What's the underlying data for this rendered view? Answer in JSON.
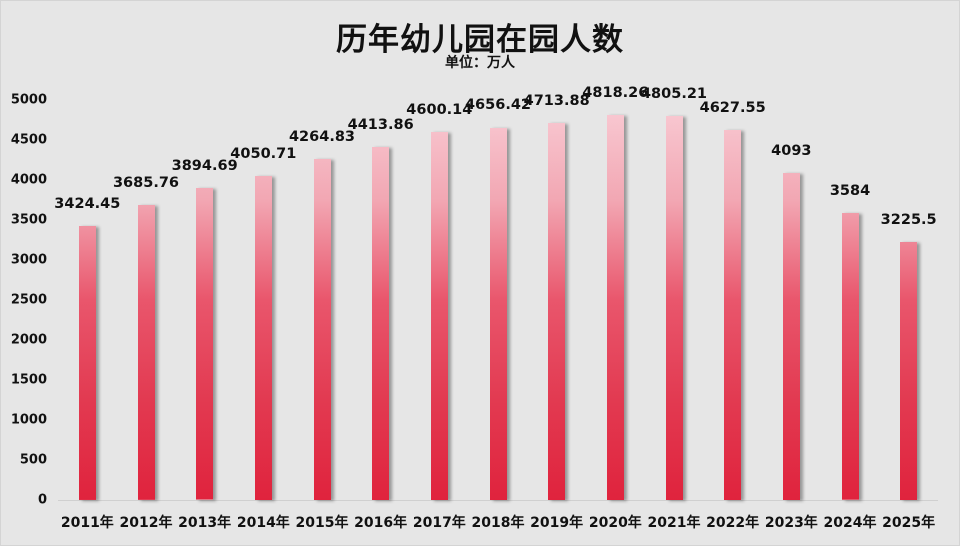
{
  "chart_data": {
    "type": "bar",
    "title": "历年幼儿园在园人数",
    "subtitle": "单位：万人",
    "xlabel": "",
    "ylabel": "",
    "categories": [
      "2011年",
      "2012年",
      "2013年",
      "2014年",
      "2015年",
      "2016年",
      "2017年",
      "2018年",
      "2019年",
      "2020年",
      "2021年",
      "2022年",
      "2023年",
      "2024年",
      "2025年"
    ],
    "values": [
      3424.45,
      3685.76,
      3894.69,
      4050.71,
      4264.83,
      4413.86,
      4600.14,
      4656.42,
      4713.88,
      4818.26,
      4805.21,
      4627.55,
      4093,
      3584,
      3225.5
    ],
    "value_labels": [
      "3424.45",
      "3685.76",
      "3894.69",
      "4050.71",
      "4264.83",
      "4413.86",
      "4600.14",
      "4656.42",
      "4713.88",
      "4818.26",
      "4805.21",
      "4627.55",
      "4093",
      "3584",
      "3225.5"
    ],
    "ylim": [
      0,
      5000
    ],
    "yticks": [
      "0",
      "500",
      "1000",
      "1500",
      "2000",
      "2500",
      "3000",
      "3500",
      "4000",
      "4500",
      "5000"
    ],
    "grid": false,
    "legend": "none",
    "colors": {
      "bar_top": "#f9ccd5",
      "bar_mid": "#e9566c",
      "bar_bottom": "#e0233d",
      "background": "#e6e6e6"
    }
  }
}
